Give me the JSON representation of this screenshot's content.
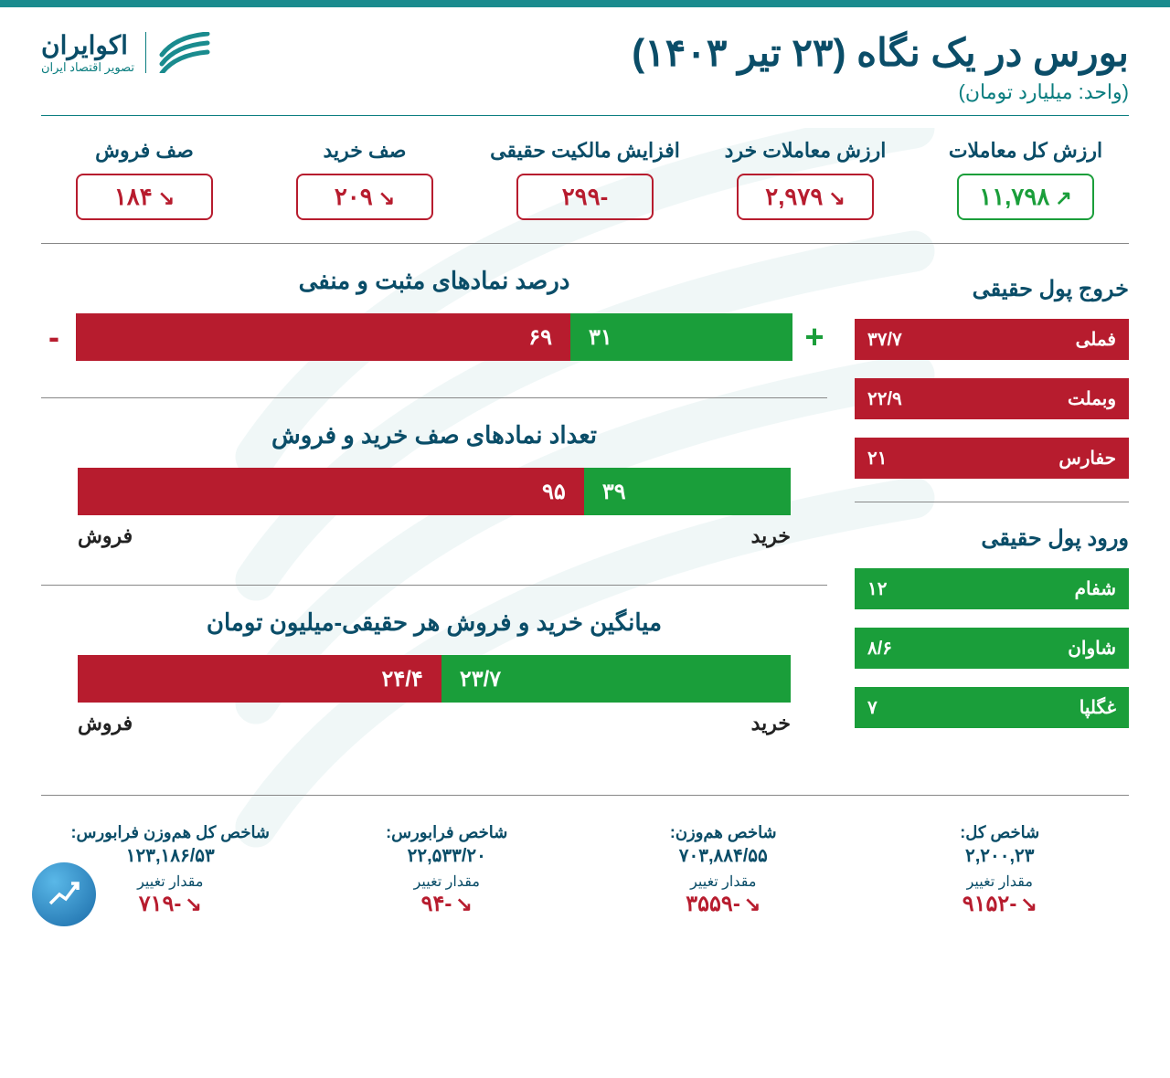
{
  "header": {
    "title": "بورس در یک نگاه (۲۳ تیر ۱۴۰۳)",
    "subtitle": "(واحد: میلیارد تومان)",
    "logo_name": "اکوایران",
    "logo_tag": "تصویر اقتصاد ایران"
  },
  "colors": {
    "primary": "#0a4d68",
    "teal": "#0a7d7f",
    "green": "#1a9e3a",
    "red": "#b71c2e"
  },
  "metrics": [
    {
      "label": "ارزش کل معاملات",
      "value": "۱۱,۷۹۸",
      "dir": "up",
      "color": "green"
    },
    {
      "label": "ارزش معاملات خرد",
      "value": "۲,۹۷۹",
      "dir": "down",
      "color": "red"
    },
    {
      "label": "افزایش مالکیت حقیقی",
      "value": "-۲۹۹",
      "dir": "",
      "color": "red"
    },
    {
      "label": "صف خرید",
      "value": "۲۰۹",
      "dir": "down",
      "color": "red"
    },
    {
      "label": "صف فروش",
      "value": "۱۸۴",
      "dir": "down",
      "color": "red"
    }
  ],
  "outflow": {
    "title": "خروج پول حقیقی",
    "items": [
      {
        "name": "فملی",
        "value": "۳۷/۷"
      },
      {
        "name": "وبملت",
        "value": "۲۲/۹"
      },
      {
        "name": "حفارس",
        "value": "۲۱"
      }
    ]
  },
  "inflow": {
    "title": "ورود پول حقیقی",
    "items": [
      {
        "name": "شفام",
        "value": "۱۲"
      },
      {
        "name": "شاوان",
        "value": "۸/۶"
      },
      {
        "name": "غگلپا",
        "value": "۷"
      }
    ]
  },
  "charts": [
    {
      "title": "درصد نمادهای مثبت و منفی",
      "green_val": "۳۱",
      "red_val": "۶۹",
      "green_pct": 31,
      "red_pct": 69,
      "show_signs": true
    },
    {
      "title": "تعداد نمادهای صف خرید و فروش",
      "green_val": "۳۹",
      "red_val": "۹۵",
      "green_pct": 29,
      "red_pct": 71,
      "green_label": "خرید",
      "red_label": "فروش",
      "indent": true
    },
    {
      "title": "میانگین خرید و فروش هر حقیقی-میلیون تومان",
      "green_val": "۲۳/۷",
      "red_val": "۲۴/۴",
      "green_pct": 49,
      "red_pct": 51,
      "green_label": "خرید",
      "red_label": "فروش",
      "indent": true
    }
  ],
  "footer": [
    {
      "title": "شاخص کل:",
      "value": "۲,۲۰۰,۲۳",
      "change_label": "مقدار تغییر",
      "change": "-۹۱۵۲"
    },
    {
      "title": "شاخص هم‌وزن:",
      "value": "۷۰۳,۸۸۴/۵۵",
      "change_label": "مقدار تغییر",
      "change": "-۳۵۵۹"
    },
    {
      "title": "شاخص فرابورس:",
      "value": "۲۲,۵۳۳/۲۰",
      "change_label": "مقدار تغییر",
      "change": "-۹۴"
    },
    {
      "title": "شاخص کل هم‌وزن فرابورس:",
      "value": "۱۲۳,۱۸۶/۵۳",
      "change_label": "مقدار تغییر",
      "change": "-۷۱۹"
    }
  ]
}
